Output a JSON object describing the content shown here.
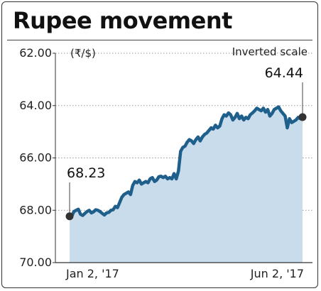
{
  "chart_data": {
    "type": "area",
    "title": "Rupee movement",
    "unit_label": "(₹/$)",
    "scale_note": "Inverted scale",
    "inverted_y": true,
    "ylim": [
      62.0,
      70.0
    ],
    "y_ticks": [
      "62.00",
      "64.00",
      "66.00",
      "68.00",
      "70.00"
    ],
    "x_labels": [
      "Jan 2, '17",
      "Jun 2, '17"
    ],
    "x_range": [
      "2017-01-02",
      "2017-06-02"
    ],
    "start_label": "68.23",
    "end_label": "64.44",
    "start_value": 68.23,
    "end_value": 64.44,
    "colors": {
      "line": "#1f5f8b",
      "fill": "#c9dcec",
      "marker": "#333333",
      "grid": "#999999"
    },
    "series": [
      {
        "values": [
          68.23,
          68.22,
          68.05,
          68.0,
          67.96,
          68.15,
          68.2,
          68.12,
          68.05,
          68.0,
          68.1,
          68.06,
          67.98,
          68.0,
          68.05,
          68.12,
          68.18,
          68.1,
          68.08,
          68.0,
          67.98,
          67.85,
          67.9,
          67.7,
          67.5,
          67.4,
          67.35,
          67.3,
          67.4,
          67.05,
          66.9,
          66.95,
          66.85,
          67.0,
          66.95,
          66.9,
          66.95,
          66.8,
          66.75,
          66.9,
          66.85,
          66.72,
          66.7,
          66.75,
          66.7,
          66.8,
          66.75,
          66.8,
          66.6,
          66.8,
          66.5,
          65.75,
          65.6,
          65.55,
          65.4,
          65.3,
          65.35,
          65.45,
          65.3,
          65.2,
          65.35,
          65.2,
          65.1,
          65.05,
          64.95,
          64.85,
          64.9,
          64.75,
          64.85,
          64.78,
          64.5,
          64.35,
          64.4,
          64.28,
          64.35,
          64.55,
          64.45,
          64.3,
          64.5,
          64.4,
          64.55,
          64.45,
          64.5,
          64.35,
          64.28,
          64.2,
          64.1,
          64.15,
          64.2,
          64.1,
          64.25,
          64.15,
          64.4,
          64.3,
          64.15,
          64.1,
          64.05,
          64.2,
          64.3,
          64.4,
          64.85,
          64.5,
          64.65,
          64.6,
          64.55,
          64.45,
          64.5,
          64.44
        ]
      }
    ]
  }
}
